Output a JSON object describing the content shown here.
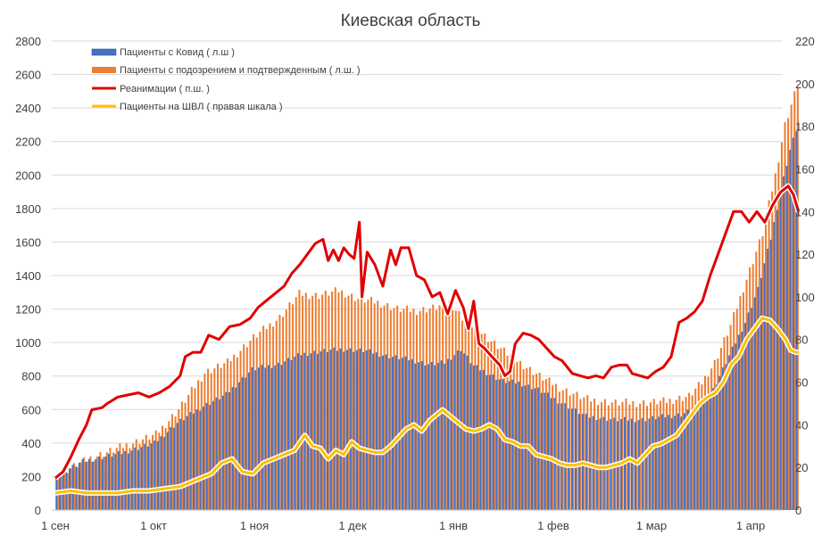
{
  "chart_data": {
    "type": "bar+line",
    "title": "Киевская область",
    "x_tick_labels": [
      "1 сен",
      "1 окт",
      "1 ноя",
      "1 дек",
      "1 янв",
      "1 фев",
      "1 мар",
      "1 апр"
    ],
    "left_axis": {
      "ylim": [
        0,
        2800
      ],
      "ticks": [
        0,
        200,
        400,
        600,
        800,
        1000,
        1200,
        1400,
        1600,
        1800,
        2000,
        2200,
        2400,
        2600,
        2800
      ]
    },
    "right_axis": {
      "ylim": [
        0,
        220
      ],
      "ticks": [
        0,
        20,
        40,
        60,
        80,
        100,
        120,
        140,
        160,
        180,
        200,
        220
      ]
    },
    "day_count": 227,
    "series": [
      {
        "name": "Пациенты с Ковид ( л.ш )",
        "type": "bar",
        "axis": "left",
        "color": "#4472c4",
        "keypoints": [
          [
            0,
            205
          ],
          [
            8,
            290
          ],
          [
            20,
            340
          ],
          [
            30,
            400
          ],
          [
            37,
            520
          ],
          [
            45,
            620
          ],
          [
            52,
            690
          ],
          [
            60,
            840
          ],
          [
            68,
            870
          ],
          [
            75,
            930
          ],
          [
            82,
            950
          ],
          [
            88,
            960
          ],
          [
            95,
            950
          ],
          [
            101,
            920
          ],
          [
            108,
            900
          ],
          [
            114,
            870
          ],
          [
            119,
            880
          ],
          [
            124,
            960
          ],
          [
            128,
            860
          ],
          [
            132,
            820
          ],
          [
            137,
            770
          ],
          [
            142,
            760
          ],
          [
            148,
            720
          ],
          [
            155,
            640
          ],
          [
            162,
            560
          ],
          [
            170,
            540
          ],
          [
            178,
            540
          ],
          [
            185,
            560
          ],
          [
            190,
            570
          ],
          [
            196,
            620
          ],
          [
            200,
            720
          ],
          [
            205,
            920
          ],
          [
            210,
            1120
          ],
          [
            214,
            1320
          ],
          [
            218,
            1620
          ],
          [
            221,
            1900
          ],
          [
            224,
            2150
          ],
          [
            227,
            2330
          ],
          [
            231,
            2380
          ],
          [
            233,
            2270
          ]
        ]
      },
      {
        "name": "Пациенты с подозрением и подтвержденным ( л.ш. )",
        "type": "bar",
        "axis": "left",
        "color": "#ed7d31",
        "keypoints": [
          [
            0,
            210
          ],
          [
            10,
            310
          ],
          [
            20,
            380
          ],
          [
            30,
            450
          ],
          [
            37,
            600
          ],
          [
            45,
            820
          ],
          [
            52,
            880
          ],
          [
            60,
            1030
          ],
          [
            68,
            1150
          ],
          [
            74,
            1290
          ],
          [
            80,
            1280
          ],
          [
            86,
            1310
          ],
          [
            92,
            1260
          ],
          [
            98,
            1240
          ],
          [
            104,
            1200
          ],
          [
            110,
            1190
          ],
          [
            116,
            1210
          ],
          [
            120,
            1240
          ],
          [
            124,
            1150
          ],
          [
            130,
            1060
          ],
          [
            137,
            950
          ],
          [
            142,
            880
          ],
          [
            148,
            800
          ],
          [
            155,
            720
          ],
          [
            162,
            660
          ],
          [
            170,
            640
          ],
          [
            178,
            640
          ],
          [
            185,
            650
          ],
          [
            192,
            680
          ],
          [
            196,
            760
          ],
          [
            200,
            880
          ],
          [
            205,
            1100
          ],
          [
            210,
            1380
          ],
          [
            215,
            1650
          ],
          [
            219,
            2000
          ],
          [
            222,
            2300
          ],
          [
            226,
            2540
          ],
          [
            229,
            2600
          ],
          [
            231,
            2620
          ],
          [
            233,
            2500
          ]
        ]
      },
      {
        "name": "Реанимации ( п.ш. )",
        "type": "line",
        "axis": "right",
        "color": "#e00000",
        "keypoints": [
          [
            0,
            15
          ],
          [
            3,
            18
          ],
          [
            6,
            25
          ],
          [
            9,
            33
          ],
          [
            12,
            40
          ],
          [
            14,
            47
          ],
          [
            18,
            48
          ],
          [
            20,
            50
          ],
          [
            24,
            53
          ],
          [
            28,
            54
          ],
          [
            32,
            55
          ],
          [
            36,
            53
          ],
          [
            40,
            55
          ],
          [
            44,
            58
          ],
          [
            48,
            63
          ],
          [
            50,
            72
          ],
          [
            53,
            74
          ],
          [
            56,
            74
          ],
          [
            59,
            82
          ],
          [
            63,
            80
          ],
          [
            67,
            86
          ],
          [
            71,
            87
          ],
          [
            75,
            90
          ],
          [
            78,
            95
          ],
          [
            82,
            99
          ],
          [
            85,
            102
          ],
          [
            88,
            105
          ],
          [
            91,
            111
          ],
          [
            94,
            115
          ],
          [
            97,
            120
          ],
          [
            100,
            125
          ],
          [
            103,
            127
          ],
          [
            105,
            117
          ],
          [
            107,
            122
          ],
          [
            109,
            117
          ],
          [
            111,
            123
          ],
          [
            113,
            120
          ],
          [
            115,
            118
          ],
          [
            117,
            135
          ],
          [
            118,
            100
          ],
          [
            120,
            121
          ],
          [
            123,
            115
          ],
          [
            126,
            105
          ],
          [
            129,
            122
          ],
          [
            131,
            115
          ],
          [
            133,
            123
          ],
          [
            136,
            123
          ],
          [
            139,
            110
          ],
          [
            142,
            108
          ],
          [
            145,
            100
          ],
          [
            148,
            102
          ],
          [
            151,
            92
          ],
          [
            154,
            103
          ],
          [
            157,
            95
          ],
          [
            159,
            85
          ],
          [
            161,
            98
          ],
          [
            163,
            78
          ],
          [
            165,
            76
          ],
          [
            168,
            72
          ],
          [
            171,
            68
          ],
          [
            173,
            63
          ],
          [
            175,
            65
          ],
          [
            177,
            78
          ],
          [
            180,
            83
          ],
          [
            183,
            82
          ],
          [
            186,
            80
          ],
          [
            189,
            76
          ],
          [
            192,
            72
          ],
          [
            195,
            70
          ],
          [
            199,
            64
          ],
          [
            202,
            63
          ],
          [
            205,
            62
          ],
          [
            208,
            63
          ],
          [
            211,
            62
          ],
          [
            214,
            67
          ],
          [
            217,
            68
          ],
          [
            220,
            68
          ],
          [
            222,
            64
          ],
          [
            225,
            63
          ],
          [
            228,
            62
          ],
          [
            231,
            65
          ],
          [
            234,
            67
          ],
          [
            237,
            72
          ],
          [
            240,
            88
          ],
          [
            243,
            90
          ],
          [
            246,
            93
          ],
          [
            249,
            98
          ],
          [
            252,
            110
          ],
          [
            255,
            120
          ],
          [
            258,
            130
          ],
          [
            261,
            140
          ],
          [
            264,
            140
          ],
          [
            267,
            135
          ],
          [
            270,
            140
          ],
          [
            273,
            135
          ],
          [
            276,
            143
          ],
          [
            279,
            149
          ],
          [
            282,
            152
          ],
          [
            284,
            148
          ],
          [
            286,
            140
          ]
        ]
      },
      {
        "name": "Пациенты на ШВЛ ( правая шкала )",
        "type": "line",
        "axis": "right",
        "color": "#ffc000",
        "keypoints": [
          [
            0,
            8
          ],
          [
            6,
            9
          ],
          [
            12,
            8
          ],
          [
            18,
            8
          ],
          [
            24,
            8
          ],
          [
            30,
            9
          ],
          [
            36,
            9
          ],
          [
            42,
            10
          ],
          [
            48,
            11
          ],
          [
            54,
            14
          ],
          [
            60,
            17
          ],
          [
            64,
            22
          ],
          [
            68,
            24
          ],
          [
            72,
            18
          ],
          [
            76,
            17
          ],
          [
            80,
            22
          ],
          [
            84,
            24
          ],
          [
            88,
            26
          ],
          [
            92,
            28
          ],
          [
            96,
            35
          ],
          [
            99,
            30
          ],
          [
            102,
            29
          ],
          [
            105,
            24
          ],
          [
            108,
            28
          ],
          [
            111,
            26
          ],
          [
            114,
            32
          ],
          [
            117,
            29
          ],
          [
            120,
            28
          ],
          [
            123,
            27
          ],
          [
            126,
            27
          ],
          [
            129,
            30
          ],
          [
            132,
            34
          ],
          [
            135,
            38
          ],
          [
            138,
            40
          ],
          [
            141,
            37
          ],
          [
            144,
            42
          ],
          [
            147,
            45
          ],
          [
            149,
            47
          ],
          [
            152,
            44
          ],
          [
            155,
            41
          ],
          [
            158,
            38
          ],
          [
            161,
            37
          ],
          [
            164,
            38
          ],
          [
            167,
            40
          ],
          [
            170,
            38
          ],
          [
            173,
            33
          ],
          [
            176,
            32
          ],
          [
            179,
            30
          ],
          [
            182,
            30
          ],
          [
            185,
            26
          ],
          [
            188,
            25
          ],
          [
            191,
            24
          ],
          [
            194,
            22
          ],
          [
            197,
            21
          ],
          [
            200,
            21
          ],
          [
            203,
            22
          ],
          [
            206,
            21
          ],
          [
            209,
            20
          ],
          [
            212,
            20
          ],
          [
            215,
            21
          ],
          [
            218,
            22
          ],
          [
            221,
            24
          ],
          [
            224,
            22
          ],
          [
            227,
            26
          ],
          [
            230,
            30
          ],
          [
            233,
            31
          ],
          [
            236,
            33
          ],
          [
            239,
            35
          ],
          [
            242,
            40
          ],
          [
            245,
            45
          ],
          [
            248,
            50
          ],
          [
            251,
            53
          ],
          [
            254,
            55
          ],
          [
            257,
            60
          ],
          [
            260,
            68
          ],
          [
            263,
            72
          ],
          [
            266,
            80
          ],
          [
            269,
            85
          ],
          [
            272,
            90
          ],
          [
            275,
            89
          ],
          [
            278,
            85
          ],
          [
            281,
            80
          ],
          [
            283,
            75
          ],
          [
            285,
            74
          ],
          [
            286,
            74
          ]
        ]
      }
    ]
  }
}
